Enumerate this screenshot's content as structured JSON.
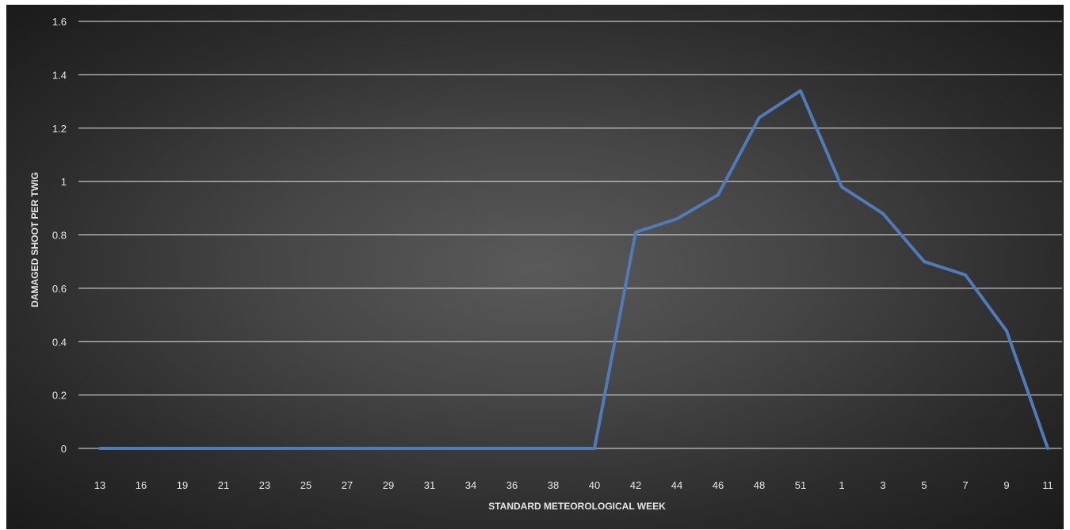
{
  "chart_data": {
    "type": "line",
    "title": "",
    "xlabel": "STANDARD METEOROLOGICAL WEEK",
    "ylabel": "DAMAGED SHOOT PER TWIG",
    "categories": [
      "13",
      "16",
      "19",
      "21",
      "23",
      "25",
      "27",
      "29",
      "31",
      "34",
      "36",
      "38",
      "40",
      "42",
      "44",
      "46",
      "48",
      "51",
      "1",
      "3",
      "5",
      "7",
      "9",
      "11"
    ],
    "series": [
      {
        "values": [
          0,
          0,
          0,
          0,
          0,
          0,
          0,
          0,
          0,
          0,
          0,
          0,
          0,
          0.81,
          0.86,
          0.95,
          1.24,
          1.34,
          0.98,
          0.88,
          0.7,
          0.65,
          0.44,
          0
        ]
      }
    ],
    "ylim": [
      0,
      1.6
    ],
    "yticks": [
      "0",
      "0.2",
      "0.4",
      "0.6",
      "0.8",
      "1",
      "1.2",
      "1.4",
      "1.6"
    ],
    "grid": true,
    "legend": "none",
    "colors": {
      "series": "#4f7bb9",
      "grid": "#e8e8e8",
      "text": "#e6e6e6"
    }
  }
}
